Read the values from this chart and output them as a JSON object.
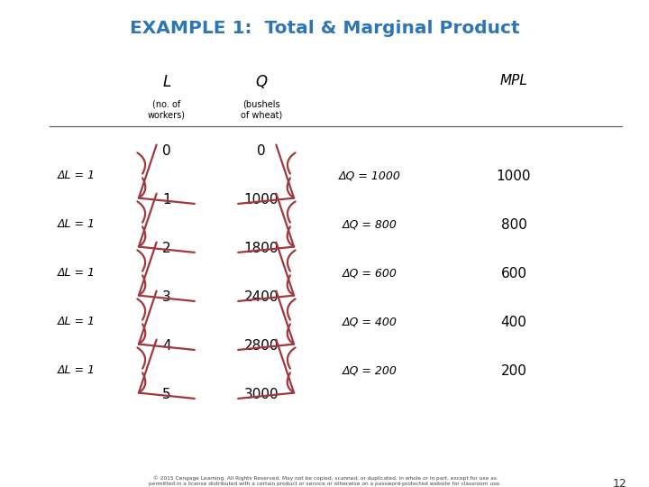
{
  "title": "EXAMPLE 1:  Total & Marginal Product",
  "title_color": "#2E75B6",
  "bg_color": "#FFFFFF",
  "col_L_header": "L",
  "col_Q_header": "Q",
  "col_L_sub": "(no. of\nworkers)",
  "col_Q_sub": "(bushels\nof wheat)",
  "col_MPL_header": "MPL",
  "L_values": [
    0,
    1,
    2,
    3,
    4,
    5
  ],
  "Q_values": [
    0,
    1000,
    1800,
    2400,
    2800,
    3000
  ],
  "delta_L_labels": [
    "ΔL = 1",
    "ΔL = 1",
    "ΔL = 1",
    "ΔL = 1",
    "ΔL = 1"
  ],
  "delta_Q_labels": [
    "ΔQ = 1000",
    "ΔQ = 800",
    "ΔQ = 600",
    "ΔQ = 400",
    "ΔQ = 200"
  ],
  "MPL_values": [
    1000,
    800,
    600,
    400,
    200
  ],
  "arrow_color": "#A0383E",
  "footer_text": "© 2015 Cengage Learning. All Rights Reserved. May not be copied, scanned, or duplicated, in whole or in part, except for use as\npermitted in a license distributed with a certain product or service or otherwise on a password-protected website for classroom use.",
  "page_number": "12"
}
